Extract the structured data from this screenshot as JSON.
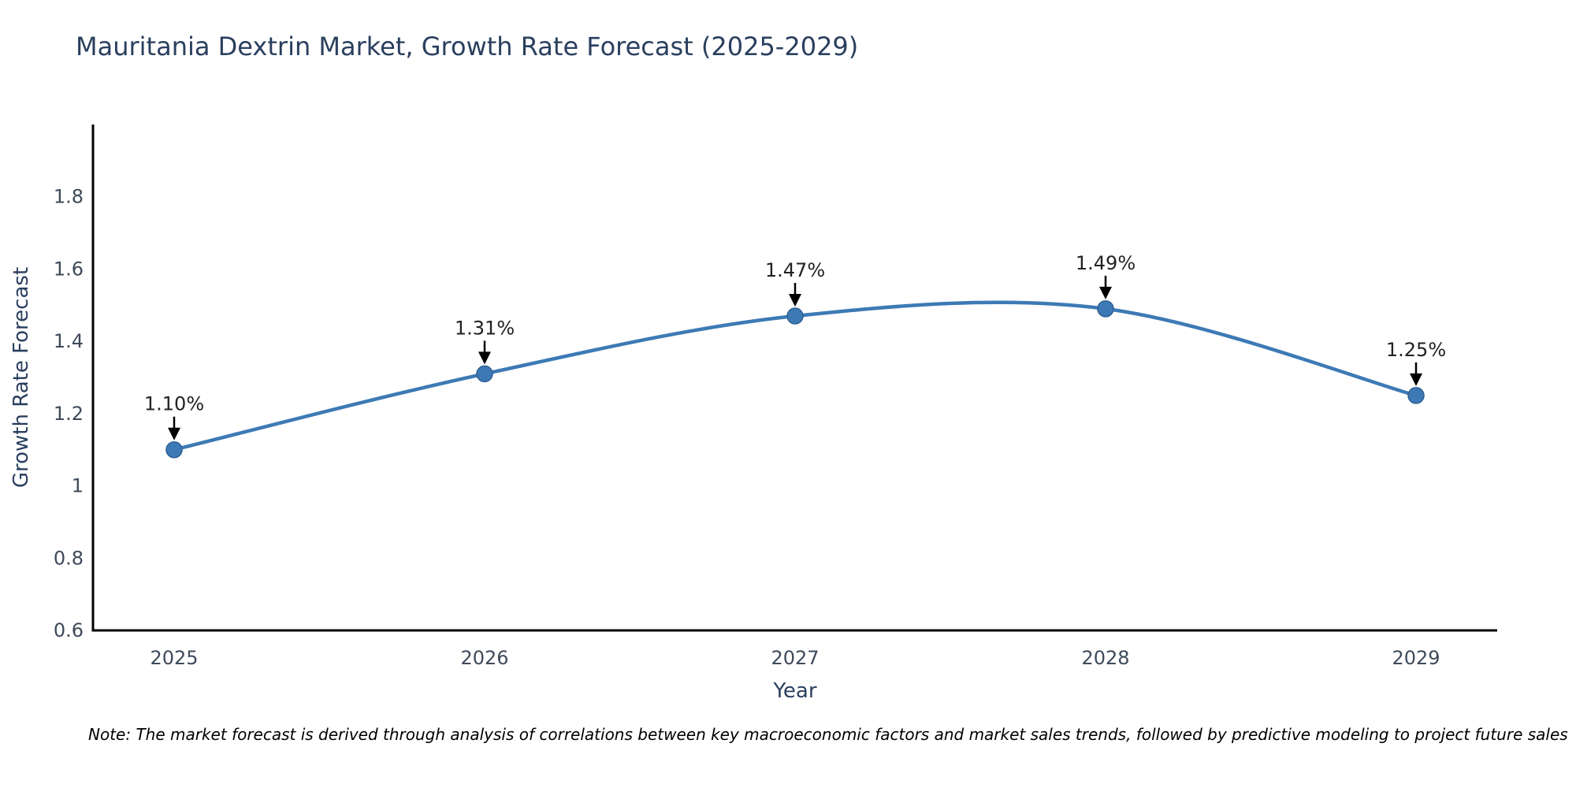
{
  "title": "Mauritania Dextrin Market, Growth Rate Forecast (2025-2029)",
  "note": "Note: The market forecast is derived through analysis of correlations between key macroeconomic factors and market sales trends, followed by predictive modeling to project future sales",
  "chart_data": {
    "type": "line",
    "title": "Mauritania Dextrin Market, Growth Rate Forecast (2025-2029)",
    "xlabel": "Year",
    "ylabel": "Growth Rate Forecast",
    "x": [
      "2025",
      "2026",
      "2027",
      "2028",
      "2029"
    ],
    "series": [
      {
        "name": "Growth Rate Forecast",
        "values": [
          1.1,
          1.31,
          1.47,
          1.49,
          1.25
        ]
      }
    ],
    "point_labels": [
      "1.10%",
      "1.31%",
      "1.47%",
      "1.49%",
      "1.25%"
    ],
    "ylim": [
      0.6,
      2.0
    ],
    "yticks": [
      0.6,
      0.8,
      1.0,
      1.2,
      1.4,
      1.6,
      1.8
    ],
    "ytick_labels": [
      "0.6",
      "0.8",
      "1",
      "1.2",
      "1.4",
      "1.6",
      "1.8"
    ],
    "line_style": "spline",
    "grid": false,
    "legend": "none",
    "colors": {
      "line": "#3d7ab5",
      "marker": "#3d7ab5",
      "marker_edge": "#2d5f93",
      "arrow": "#000000",
      "axis": "#000000",
      "title_text": "#2a3f5f",
      "tick_text": "#3e4a5a",
      "annotation_text": "#222222"
    }
  }
}
